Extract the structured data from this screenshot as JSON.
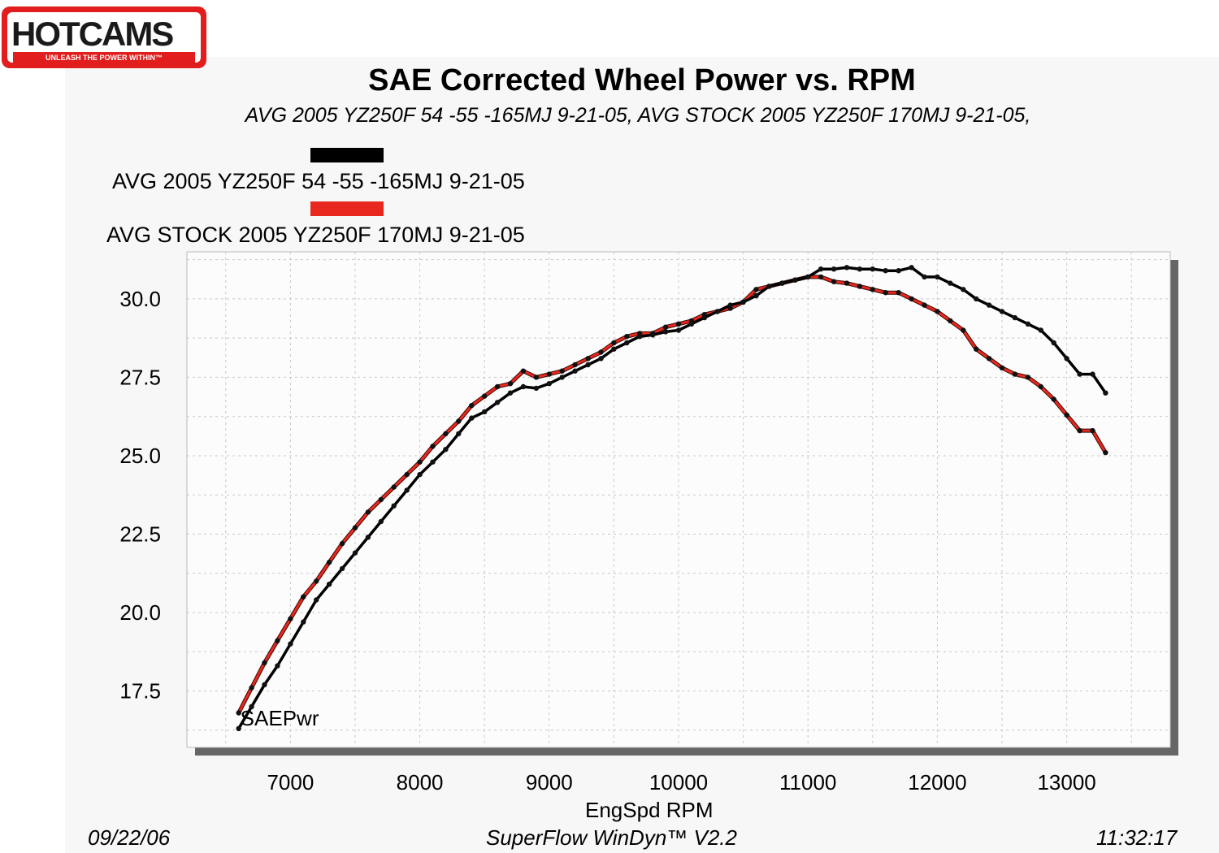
{
  "logo": {
    "text": "HOTCAMS",
    "tagline": "UNLEASH THE POWER WITHIN™"
  },
  "chart_data": {
    "type": "line",
    "title": "SAE Corrected Wheel Power vs. RPM",
    "subtitle": "AVG 2005 YZ250F 54 -55 -165MJ 9-21-05, AVG STOCK 2005 YZ250F 170MJ 9-21-05,",
    "xlabel": "EngSpd  RPM",
    "ylabel": "",
    "trace_label": "SAEPwr",
    "xlim": [
      6200,
      13800
    ],
    "ylim": [
      15.7,
      31.5
    ],
    "xticks": [
      7000,
      8000,
      9000,
      10000,
      11000,
      12000,
      13000
    ],
    "yticks": [
      17.5,
      20.0,
      22.5,
      25.0,
      27.5,
      30.0
    ],
    "xtick_labels": [
      "7000",
      "8000",
      "9000",
      "10000",
      "11000",
      "12000",
      "13000"
    ],
    "ytick_labels": [
      "17.5",
      "20.0",
      "22.5",
      "25.0",
      "27.5",
      "30.0"
    ],
    "grid": true,
    "legend_position": "top-left",
    "series": [
      {
        "name": "AVG 2005 YZ250F 54 -55 -165MJ 9-21-05",
        "color": "#000000",
        "x": [
          6600,
          6700,
          6800,
          6900,
          7000,
          7100,
          7200,
          7300,
          7400,
          7500,
          7600,
          7700,
          7800,
          7900,
          8000,
          8100,
          8200,
          8300,
          8400,
          8500,
          8600,
          8700,
          8800,
          8900,
          9000,
          9100,
          9200,
          9300,
          9400,
          9500,
          9600,
          9700,
          9800,
          9900,
          10000,
          10100,
          10200,
          10300,
          10400,
          10500,
          10600,
          10700,
          10800,
          10900,
          11000,
          11100,
          11200,
          11300,
          11400,
          11500,
          11600,
          11700,
          11800,
          11900,
          12000,
          12100,
          12200,
          12300,
          12400,
          12500,
          12600,
          12700,
          12800,
          12900,
          13000,
          13100,
          13200,
          13300
        ],
        "y": [
          16.3,
          17.0,
          17.7,
          18.3,
          19.0,
          19.7,
          20.4,
          20.9,
          21.4,
          21.9,
          22.4,
          22.9,
          23.4,
          23.9,
          24.4,
          24.8,
          25.2,
          25.7,
          26.2,
          26.4,
          26.7,
          27.0,
          27.2,
          27.15,
          27.3,
          27.5,
          27.7,
          27.9,
          28.1,
          28.4,
          28.6,
          28.8,
          28.85,
          28.95,
          29.0,
          29.2,
          29.4,
          29.6,
          29.8,
          29.9,
          30.1,
          30.4,
          30.5,
          30.6,
          30.7,
          30.95,
          30.95,
          31.0,
          30.95,
          30.95,
          30.9,
          30.9,
          31.0,
          30.7,
          30.7,
          30.5,
          30.3,
          30.0,
          29.8,
          29.6,
          29.4,
          29.2,
          29.0,
          28.6,
          28.1,
          27.6,
          27.6,
          27.0
        ]
      },
      {
        "name": "AVG STOCK 2005 YZ250F 170MJ 9-21-05",
        "color": "#e8281e",
        "x": [
          6600,
          6700,
          6800,
          6900,
          7000,
          7100,
          7200,
          7300,
          7400,
          7500,
          7600,
          7700,
          7800,
          7900,
          8000,
          8100,
          8200,
          8300,
          8400,
          8500,
          8600,
          8700,
          8800,
          8900,
          9000,
          9100,
          9200,
          9300,
          9400,
          9500,
          9600,
          9700,
          9800,
          9900,
          10000,
          10100,
          10200,
          10300,
          10400,
          10500,
          10600,
          10700,
          10800,
          10900,
          11000,
          11100,
          11200,
          11300,
          11400,
          11500,
          11600,
          11700,
          11800,
          11900,
          12000,
          12100,
          12200,
          12300,
          12400,
          12500,
          12600,
          12700,
          12800,
          12900,
          13000,
          13100,
          13200,
          13300
        ],
        "y": [
          16.8,
          17.6,
          18.4,
          19.1,
          19.8,
          20.5,
          21.0,
          21.6,
          22.2,
          22.7,
          23.2,
          23.6,
          24.0,
          24.4,
          24.8,
          25.3,
          25.7,
          26.1,
          26.6,
          26.9,
          27.2,
          27.3,
          27.7,
          27.5,
          27.6,
          27.7,
          27.9,
          28.1,
          28.3,
          28.6,
          28.8,
          28.9,
          28.9,
          29.1,
          29.2,
          29.3,
          29.5,
          29.6,
          29.7,
          29.9,
          30.3,
          30.4,
          30.5,
          30.6,
          30.7,
          30.7,
          30.55,
          30.5,
          30.4,
          30.3,
          30.2,
          30.2,
          30.0,
          29.8,
          29.6,
          29.3,
          29.0,
          28.4,
          28.1,
          27.8,
          27.6,
          27.5,
          27.2,
          26.8,
          26.3,
          25.8,
          25.8,
          25.1
        ]
      }
    ]
  },
  "footer": {
    "date": "09/22/06",
    "software": "SuperFlow WinDyn™ V2.2",
    "time": "11:32:17"
  }
}
